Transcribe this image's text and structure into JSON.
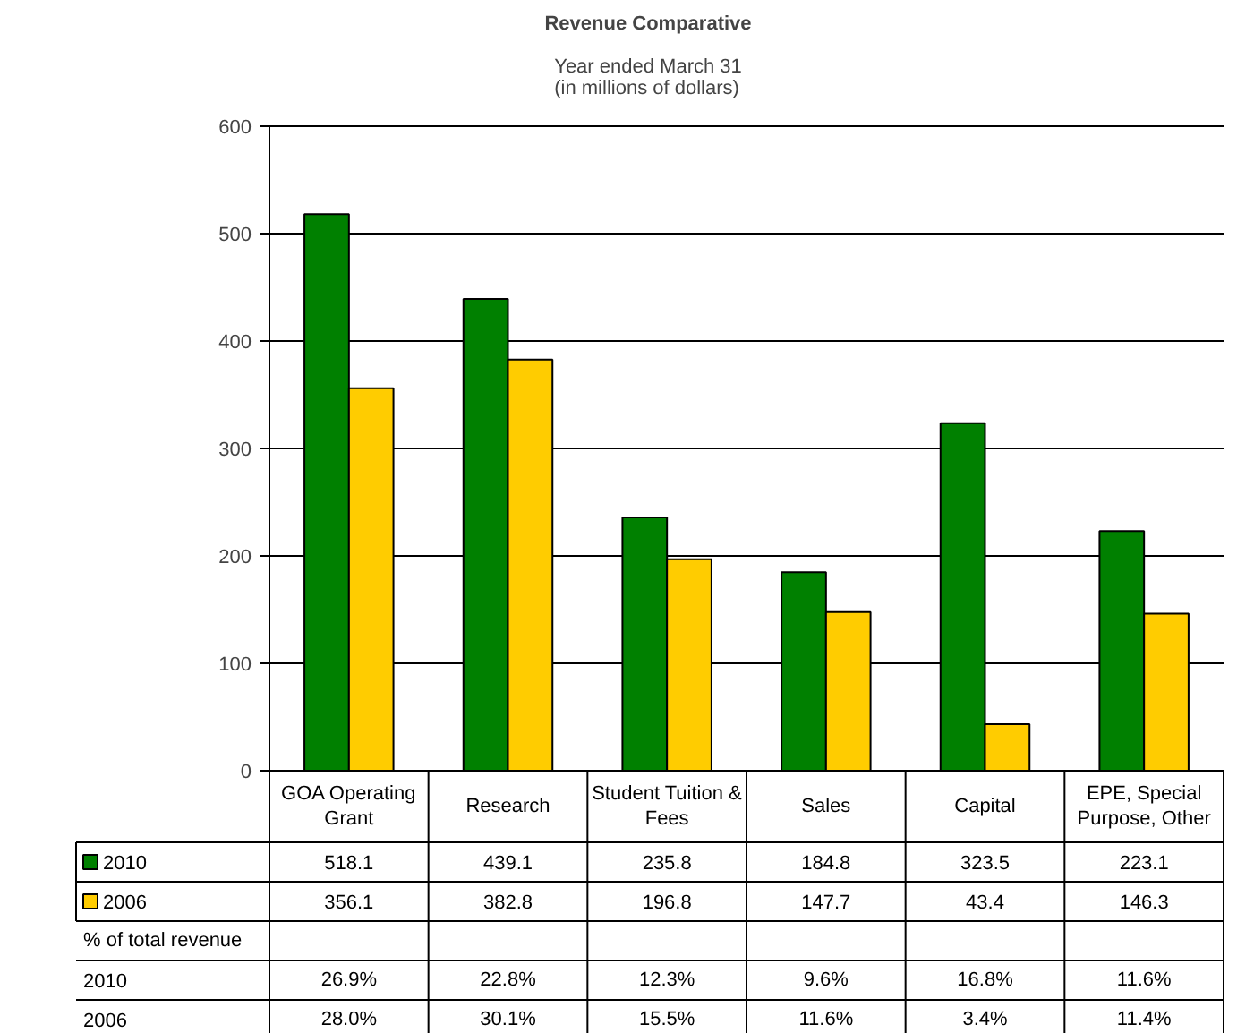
{
  "chart_data": {
    "type": "bar",
    "title": "Revenue Comparative",
    "subtitle": "Year ended March 31\n(in millions of dollars)",
    "categories": [
      "GOA Operating Grant",
      "Research",
      "Student Tuition & Fees",
      "Sales",
      "Capital",
      "EPE, Special Purpose, Other"
    ],
    "series": [
      {
        "name": "2010",
        "color": "#008000",
        "values": [
          518.1,
          439.1,
          235.8,
          184.8,
          323.5,
          223.1
        ]
      },
      {
        "name": "2006",
        "color": "#ffcc00",
        "values": [
          356.1,
          382.8,
          196.8,
          147.7,
          43.4,
          146.3
        ]
      }
    ],
    "data_labels": true,
    "legend": "bottom left",
    "grid": "y",
    "ylim": [
      0,
      600
    ],
    "yticks": [
      0,
      100,
      200,
      300,
      400,
      500,
      600
    ],
    "annotations": [
      "% of total revenue",
      "2010",
      "26.9%",
      "22.8%",
      "12.3%",
      "9.6%",
      "16.8%",
      "11.6%",
      "2006",
      "28.0%",
      "30.1%",
      "15.5%",
      "11.6%",
      "3.4%",
      "11.4%"
    ]
  }
}
